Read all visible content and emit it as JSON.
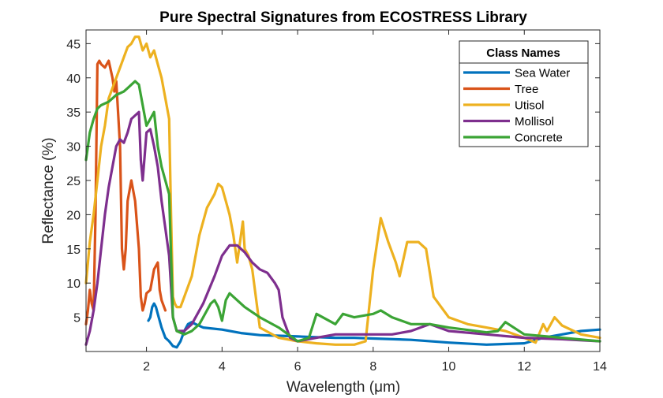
{
  "chart_data": {
    "type": "line",
    "title": "Pure Spectral Signatures from ECOSTRESS Library",
    "xlabel": "Wavelength (μm)",
    "ylabel": "Reflectance (%)",
    "xlim": [
      0.4,
      14
    ],
    "ylim": [
      0,
      47
    ],
    "xticks": [
      2,
      4,
      6,
      8,
      10,
      12,
      14
    ],
    "yticks": [
      5,
      10,
      15,
      20,
      25,
      30,
      35,
      40,
      45
    ],
    "grid": false,
    "legend": {
      "title": "Class Names",
      "location": "top-right"
    },
    "series": [
      {
        "name": "Sea Water",
        "color": "#0072BD",
        "x": [
          2.05,
          2.1,
          2.15,
          2.2,
          2.25,
          2.3,
          2.4,
          2.5,
          2.6,
          2.7,
          2.8,
          2.9,
          3.0,
          3.1,
          3.2,
          3.3,
          3.5,
          4.0,
          4.5,
          5.0,
          5.5,
          6.0,
          6.5,
          7.0,
          7.5,
          8.0,
          9.0,
          10.0,
          11.0,
          12.0,
          12.5,
          13.0,
          13.5,
          14.0
        ],
        "y": [
          4.5,
          5.0,
          6.5,
          7.0,
          6.5,
          5.5,
          3.5,
          2.0,
          1.5,
          0.8,
          0.6,
          1.5,
          3.0,
          4.0,
          4.3,
          4.0,
          3.5,
          3.2,
          2.7,
          2.4,
          2.3,
          2.2,
          2.1,
          2.0,
          2.0,
          1.9,
          1.7,
          1.3,
          1.0,
          1.2,
          2.0,
          2.5,
          3.0,
          3.2
        ]
      },
      {
        "name": "Tree",
        "color": "#D95319",
        "x": [
          0.4,
          0.45,
          0.5,
          0.55,
          0.6,
          0.65,
          0.7,
          0.75,
          0.8,
          0.9,
          1.0,
          1.1,
          1.15,
          1.2,
          1.3,
          1.35,
          1.4,
          1.45,
          1.5,
          1.6,
          1.7,
          1.8,
          1.85,
          1.9,
          1.95,
          2.0,
          2.1,
          2.2,
          2.3,
          2.35,
          2.4,
          2.5
        ],
        "y": [
          4.0,
          6.0,
          9.0,
          7.0,
          6.0,
          20.0,
          42.0,
          42.5,
          42.0,
          41.5,
          42.5,
          40.0,
          38.0,
          39.5,
          30.0,
          15.0,
          12.0,
          15.0,
          22.0,
          25.0,
          22.0,
          15.0,
          8.0,
          6.0,
          7.0,
          8.5,
          9.0,
          12.0,
          13.0,
          9.0,
          7.5,
          6.0
        ]
      },
      {
        "name": "Utisol",
        "color": "#EDB120",
        "x": [
          0.4,
          0.5,
          0.6,
          0.7,
          0.8,
          0.9,
          1.0,
          1.2,
          1.4,
          1.5,
          1.6,
          1.7,
          1.8,
          1.9,
          2.0,
          2.1,
          2.2,
          2.3,
          2.4,
          2.5,
          2.6,
          2.65,
          2.7,
          2.75,
          2.8,
          2.9,
          3.0,
          3.2,
          3.4,
          3.6,
          3.8,
          3.9,
          4.0,
          4.1,
          4.2,
          4.3,
          4.4,
          4.5,
          4.55,
          4.6,
          4.7,
          4.8,
          5.0,
          5.5,
          6.0,
          6.5,
          7.0,
          7.5,
          7.8,
          8.0,
          8.2,
          8.4,
          8.6,
          8.7,
          8.9,
          9.2,
          9.4,
          9.6,
          10.0,
          10.5,
          11.0,
          11.5,
          12.0,
          12.3,
          12.5,
          12.6,
          12.8,
          13.0,
          13.5,
          14.0
        ],
        "y": [
          10.0,
          16.0,
          20.0,
          25.0,
          30.0,
          33.0,
          37.0,
          40.0,
          43.0,
          44.5,
          45.0,
          46.0,
          46.0,
          44.0,
          45.0,
          43.0,
          44.0,
          42.0,
          40.0,
          37.0,
          34.0,
          20.0,
          8.0,
          7.0,
          6.5,
          6.5,
          8.0,
          11.0,
          17.0,
          21.0,
          23.0,
          24.5,
          24.0,
          22.0,
          20.0,
          17.0,
          13.0,
          17.0,
          19.0,
          15.0,
          14.0,
          12.0,
          3.5,
          2.0,
          1.5,
          1.2,
          1.0,
          1.0,
          1.5,
          12.0,
          19.5,
          16.0,
          13.0,
          11.0,
          16.0,
          16.0,
          15.0,
          8.0,
          5.0,
          4.0,
          3.5,
          3.0,
          2.0,
          1.3,
          4.0,
          3.0,
          5.0,
          3.8,
          2.5,
          2.0
        ]
      },
      {
        "name": "Mollisol",
        "color": "#7E2F8E",
        "x": [
          0.4,
          0.5,
          0.6,
          0.7,
          0.8,
          0.9,
          1.0,
          1.1,
          1.2,
          1.3,
          1.4,
          1.5,
          1.6,
          1.7,
          1.8,
          1.85,
          1.9,
          2.0,
          2.1,
          2.2,
          2.3,
          2.4,
          2.5,
          2.6,
          2.7,
          2.8,
          3.0,
          3.2,
          3.5,
          3.8,
          4.0,
          4.2,
          4.4,
          4.6,
          4.8,
          5.0,
          5.2,
          5.4,
          5.5,
          5.6,
          5.8,
          6.0,
          6.5,
          7.0,
          7.5,
          8.0,
          8.5,
          9.0,
          9.5,
          10.0,
          11.0,
          12.0,
          13.0,
          14.0
        ],
        "y": [
          1.0,
          3.0,
          6.0,
          10.0,
          15.0,
          20.0,
          24.0,
          27.0,
          30.0,
          31.0,
          30.5,
          32.0,
          34.0,
          34.5,
          35.0,
          28.0,
          25.0,
          32.0,
          32.5,
          30.0,
          27.0,
          22.0,
          18.0,
          14.0,
          5.0,
          3.0,
          3.0,
          4.0,
          7.0,
          11.0,
          14.0,
          15.5,
          15.5,
          14.5,
          13.0,
          12.0,
          11.5,
          10.0,
          9.0,
          5.0,
          2.0,
          1.5,
          2.0,
          2.5,
          2.5,
          2.5,
          2.5,
          3.0,
          4.0,
          3.0,
          2.5,
          2.0,
          1.8,
          1.5
        ]
      },
      {
        "name": "Concrete",
        "color": "#3BA435",
        "x": [
          0.4,
          0.5,
          0.6,
          0.7,
          0.8,
          1.0,
          1.2,
          1.4,
          1.5,
          1.6,
          1.7,
          1.8,
          1.9,
          2.0,
          2.1,
          2.2,
          2.3,
          2.4,
          2.5,
          2.6,
          2.7,
          2.8,
          3.0,
          3.2,
          3.4,
          3.5,
          3.6,
          3.7,
          3.8,
          3.9,
          4.0,
          4.1,
          4.2,
          4.4,
          4.6,
          5.0,
          5.5,
          6.0,
          6.3,
          6.5,
          7.0,
          7.2,
          7.5,
          8.0,
          8.2,
          8.5,
          9.0,
          9.5,
          10.0,
          11.0,
          11.3,
          11.5,
          12.0,
          13.0,
          14.0
        ],
        "y": [
          28.0,
          32.0,
          34.0,
          35.5,
          36.0,
          36.5,
          37.5,
          38.0,
          38.5,
          39.0,
          39.5,
          39.0,
          36.0,
          33.0,
          34.0,
          35.0,
          30.0,
          27.0,
          25.0,
          23.0,
          5.0,
          3.0,
          2.5,
          3.0,
          4.0,
          5.0,
          6.0,
          7.0,
          7.5,
          6.5,
          4.5,
          7.5,
          8.5,
          7.5,
          6.5,
          5.0,
          3.5,
          1.5,
          2.0,
          5.5,
          4.0,
          5.5,
          5.0,
          5.5,
          6.0,
          5.0,
          4.0,
          4.0,
          3.5,
          2.8,
          3.0,
          4.3,
          2.5,
          2.0,
          1.5
        ]
      }
    ]
  }
}
